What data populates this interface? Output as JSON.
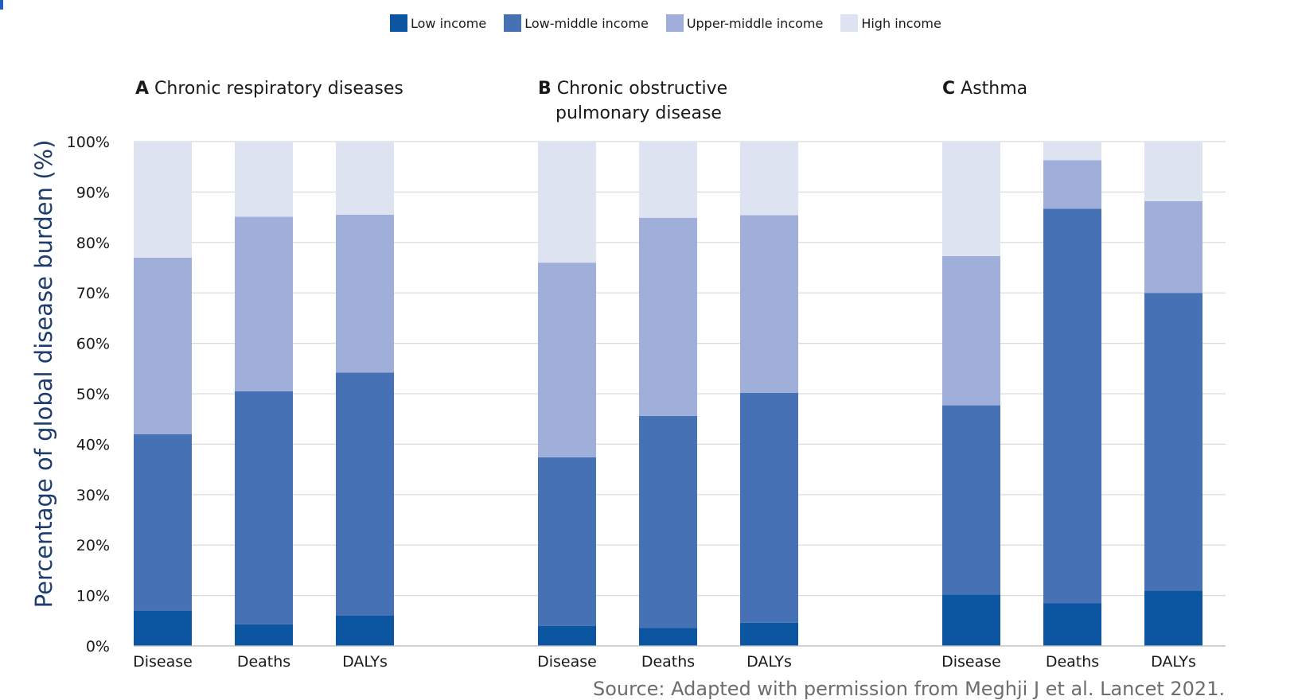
{
  "legend": [
    {
      "label": "Low income",
      "color": "#0b55a1"
    },
    {
      "label": "Low-middle income",
      "color": "#4671b4"
    },
    {
      "label": "Upper-middle income",
      "color": "#a0afd9"
    },
    {
      "label": "High income",
      "color": "#dee3f2"
    }
  ],
  "panels": [
    {
      "letter": "A",
      "title_line1": "Chronic respiratory diseases",
      "title_line2": ""
    },
    {
      "letter": "B",
      "title_line1": "Chronic obstructive",
      "title_line2": "pulmonary disease"
    },
    {
      "letter": "C",
      "title_line1": "Asthma",
      "title_line2": ""
    }
  ],
  "source": "Source: Adapted with permission from Meghji J et al. Lancet 2021.",
  "chart_data": {
    "type": "bar",
    "stacked": true,
    "ylabel": "Percentage of global disease burden (%)",
    "ylim": [
      0,
      100
    ],
    "yticks": [
      "0%",
      "10%",
      "20%",
      "30%",
      "40%",
      "50%",
      "60%",
      "70%",
      "80%",
      "90%",
      "100%"
    ],
    "grid": true,
    "legend_position": "top",
    "categories": [
      "Disease",
      "Deaths",
      "DALYs"
    ],
    "series_names": [
      "Low income",
      "Low-middle income",
      "Upper-middle income",
      "High income"
    ],
    "groups": [
      {
        "panel": "A",
        "bars": [
          [
            7,
            35,
            35,
            23
          ],
          [
            4.3,
            46.2,
            34.6,
            14.9
          ],
          [
            6,
            48.2,
            31.3,
            14.5
          ]
        ]
      },
      {
        "panel": "B",
        "bars": [
          [
            4,
            33.4,
            38.6,
            24
          ],
          [
            3.6,
            42,
            39.3,
            15.1
          ],
          [
            4.6,
            45.6,
            35.2,
            14.6
          ]
        ]
      },
      {
        "panel": "C",
        "bars": [
          [
            10.2,
            37.5,
            29.6,
            22.7
          ],
          [
            8.5,
            78.2,
            9.6,
            3.7
          ],
          [
            11,
            59,
            18.2,
            11.8
          ]
        ]
      }
    ]
  }
}
